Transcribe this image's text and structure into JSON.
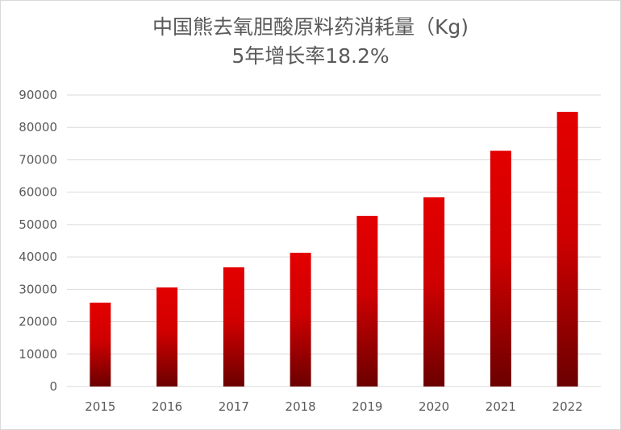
{
  "chart_data": {
    "type": "bar",
    "title": "中国熊去氧胆酸原料药消耗量（Kg)",
    "subtitle": "5年增长率18.2%",
    "xlabel": "",
    "ylabel": "",
    "categories": [
      "2015",
      "2016",
      "2017",
      "2018",
      "2019",
      "2020",
      "2021",
      "2022"
    ],
    "values": [
      25900,
      30600,
      36800,
      41300,
      52700,
      58400,
      72800,
      84800
    ],
    "ylim": [
      0,
      90000
    ],
    "yticks": [
      0,
      10000,
      20000,
      30000,
      40000,
      50000,
      60000,
      70000,
      80000,
      90000
    ],
    "grid": true,
    "legend": "none",
    "colors": {
      "bar_top": "#e30000",
      "bar_bottom": "#6b0000",
      "grid": "#d9d9d9",
      "text": "#595959"
    }
  }
}
